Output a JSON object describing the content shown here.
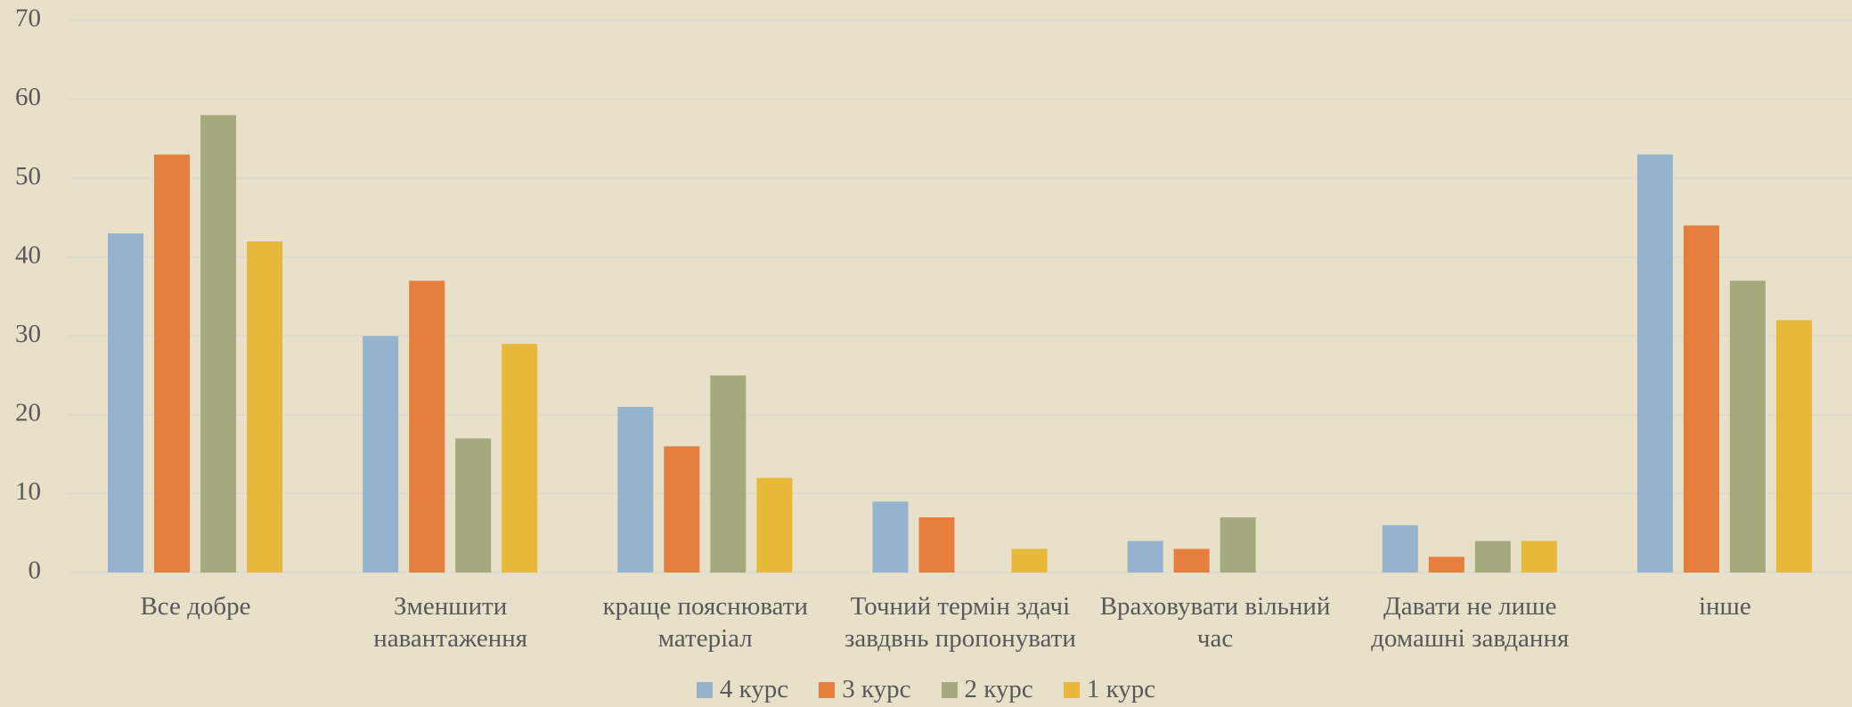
{
  "chart_data": {
    "type": "bar",
    "categories": [
      "Все добре",
      "Зменшити\nнавантаження",
      "краще пояснювати\nматеріал",
      "Точний термін здачі\nзавдвнь пропонувати",
      "Враховувати вільний\nчас",
      "Давати не лише\nдомашні завдання",
      "інше"
    ],
    "series": [
      {
        "name": "4 курс",
        "color": "#95b3cc",
        "values": [
          43,
          30,
          21,
          9,
          4,
          6,
          53
        ]
      },
      {
        "name": "3 курс",
        "color": "#e67e3e",
        "values": [
          53,
          37,
          16,
          7,
          3,
          2,
          44
        ]
      },
      {
        "name": "2 курс",
        "color": "#a4aa7e",
        "values": [
          58,
          17,
          25,
          0,
          7,
          4,
          37
        ]
      },
      {
        "name": "1 курс",
        "color": "#e8b83a",
        "values": [
          42,
          29,
          12,
          3,
          0,
          4,
          32
        ]
      }
    ],
    "ylim": [
      0,
      70
    ],
    "yticks": [
      0,
      10,
      20,
      30,
      40,
      50,
      60,
      70
    ],
    "grid": true,
    "legend": "bottom"
  }
}
